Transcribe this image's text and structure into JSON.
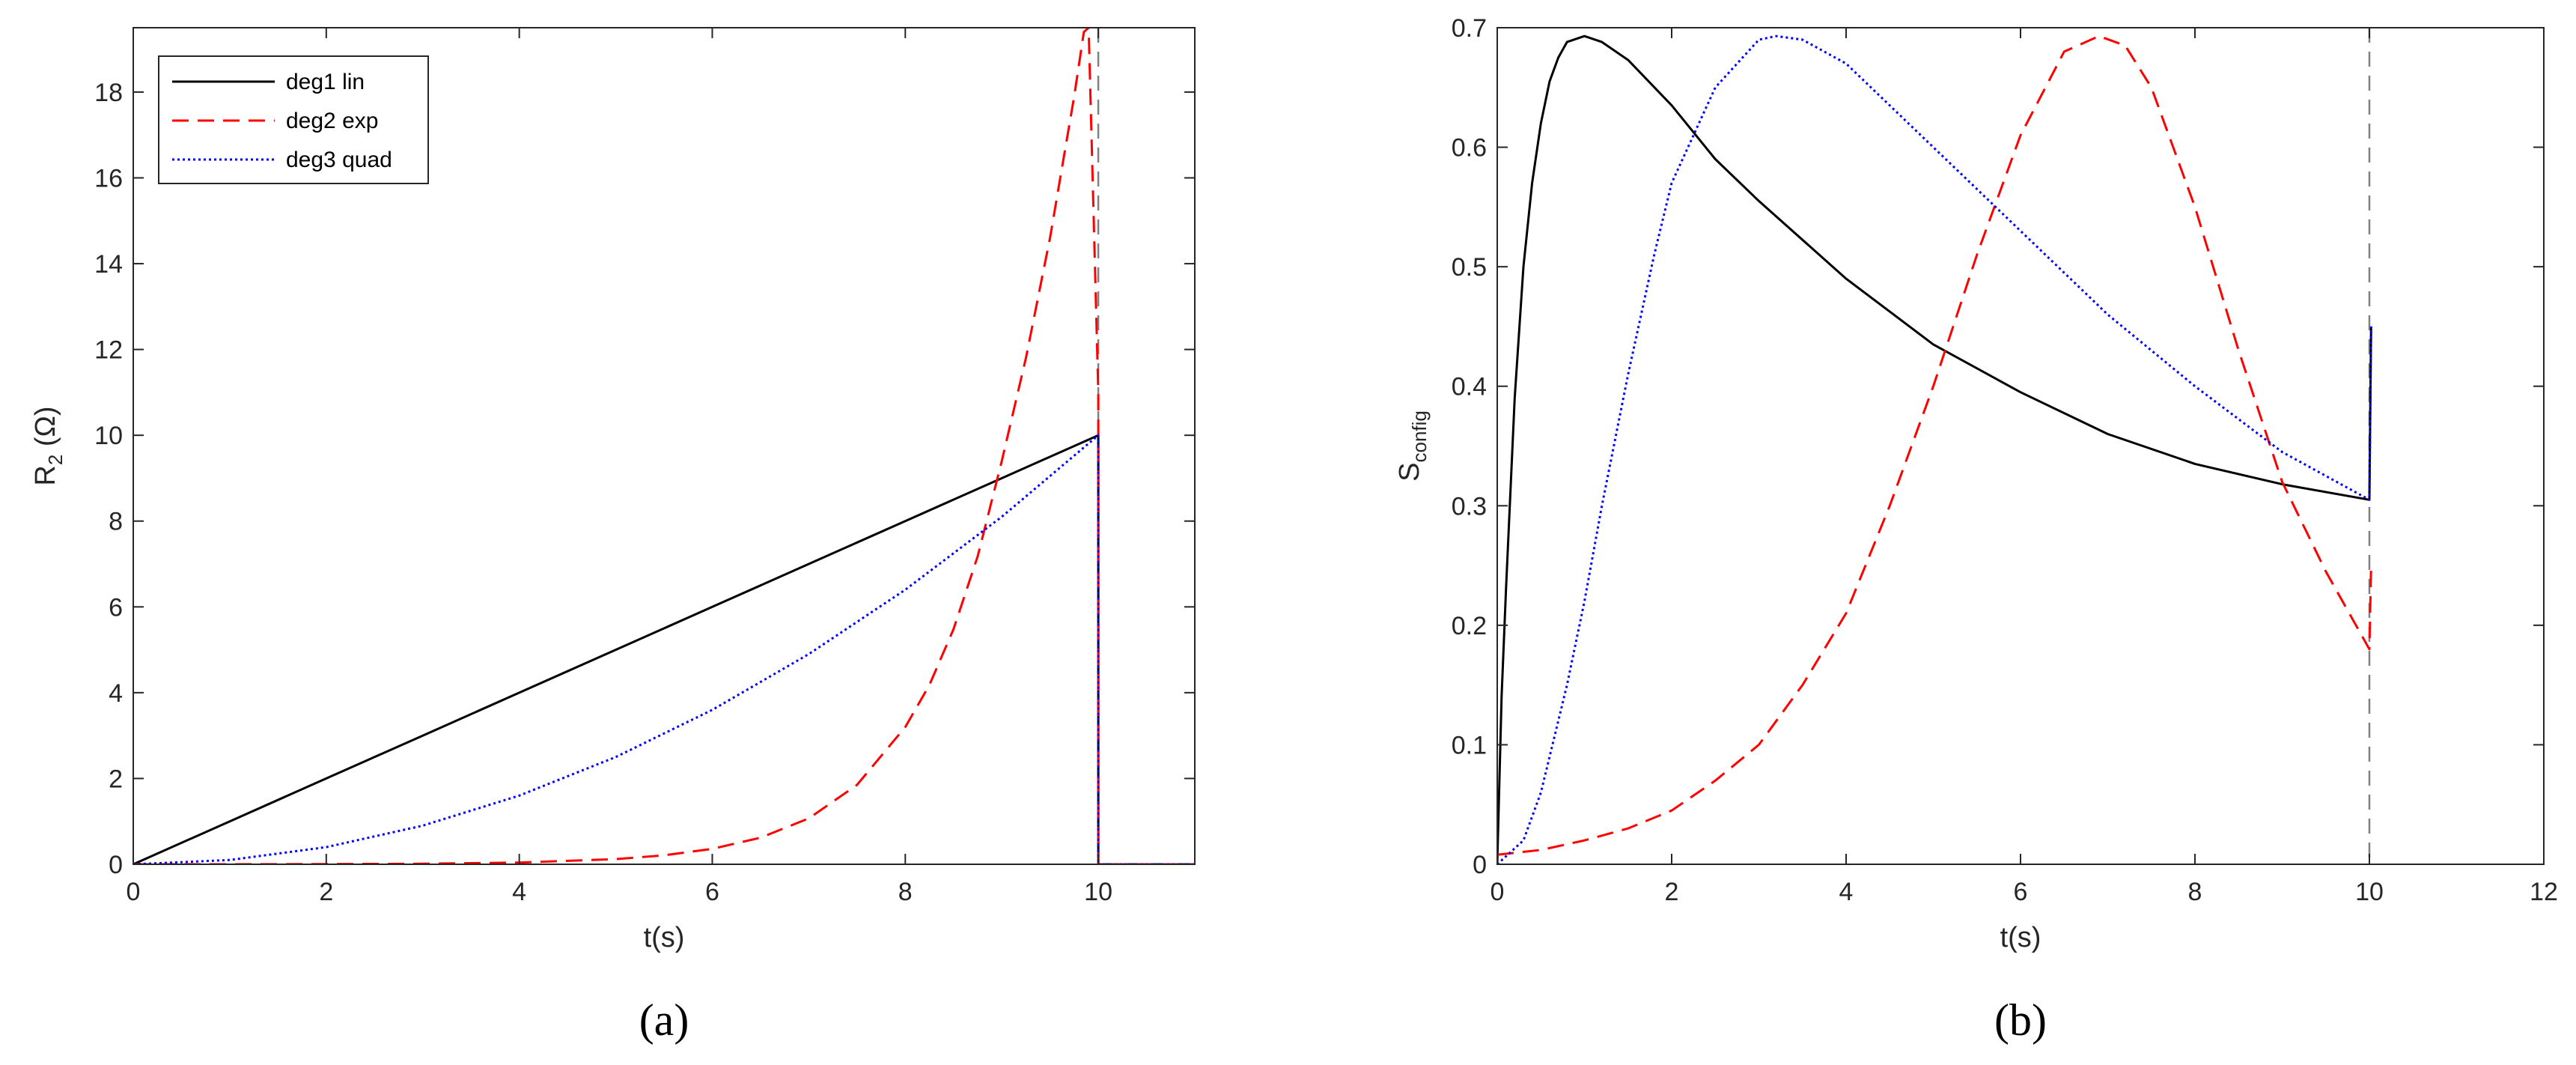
{
  "chart_data": [
    {
      "type": "line",
      "panel_label": "(a)",
      "xlabel": "t(s)",
      "ylabel": {
        "main": "R",
        "subscript": "2",
        "unit": " (Ω)"
      },
      "xlim": [
        0,
        11
      ],
      "ylim": [
        0,
        19.5
      ],
      "xticks": [
        0,
        2,
        4,
        6,
        8,
        10
      ],
      "yticks": [
        0,
        2,
        4,
        6,
        8,
        10,
        12,
        14,
        16,
        18
      ],
      "grid": false,
      "vline": {
        "x": 10,
        "color": "#808080",
        "style": "dashed"
      },
      "legend": {
        "placement": "top-left"
      },
      "series": [
        {
          "name": "deg1 lin",
          "color": "#000000",
          "style": "solid",
          "x": [
            0,
            1,
            2,
            3,
            4,
            5,
            6,
            7,
            8,
            9,
            10,
            10,
            11
          ],
          "y": [
            0,
            1,
            2,
            3,
            4,
            5,
            6,
            7,
            8,
            9,
            10,
            0,
            0
          ]
        },
        {
          "name": "deg2 exp",
          "color": "#ff0000",
          "style": "dashed",
          "x": [
            0,
            1,
            2,
            3,
            4,
            5,
            5.5,
            6,
            6.5,
            7,
            7.5,
            8,
            8.25,
            8.5,
            8.75,
            9,
            9.25,
            9.5,
            9.75,
            9.85,
            9.9,
            10,
            10,
            11
          ],
          "y": [
            0,
            0,
            0.005,
            0.013,
            0.04,
            0.12,
            0.21,
            0.36,
            0.62,
            1.07,
            1.85,
            3.2,
            4.18,
            5.48,
            7.18,
            9.4,
            11.8,
            14.6,
            17.9,
            19.4,
            19.5,
            11,
            0,
            0
          ]
        },
        {
          "name": "deg3 quad",
          "color": "#0000ff",
          "style": "dotted",
          "x": [
            0,
            1,
            2,
            3,
            4,
            5,
            6,
            7,
            8,
            9,
            10,
            10,
            11
          ],
          "y": [
            0,
            0.1,
            0.4,
            0.9,
            1.6,
            2.5,
            3.6,
            4.9,
            6.4,
            8.1,
            10,
            0,
            0
          ]
        }
      ]
    },
    {
      "type": "line",
      "panel_label": "(b)",
      "xlabel": "t(s)",
      "ylabel": {
        "main": "S",
        "subscript": "config",
        "unit": ""
      },
      "xlim": [
        0,
        12
      ],
      "ylim": [
        0,
        0.7
      ],
      "xticks": [
        0,
        2,
        4,
        6,
        8,
        10,
        12
      ],
      "yticks": [
        0,
        0.1,
        0.2,
        0.3,
        0.4,
        0.5,
        0.6,
        0.7
      ],
      "ytick_labels": [
        "0",
        "0.1",
        "0.2",
        "0.3",
        "0.4",
        "0.5",
        "0.6",
        "0.7"
      ],
      "grid": false,
      "vline": {
        "x": 10,
        "color": "#808080",
        "style": "dashed"
      },
      "series": [
        {
          "name": "deg1 lin",
          "color": "#000000",
          "style": "solid",
          "x": [
            0,
            0.05,
            0.1,
            0.2,
            0.3,
            0.4,
            0.5,
            0.6,
            0.7,
            0.8,
            1.0,
            1.2,
            1.5,
            2,
            2.5,
            3,
            4,
            5,
            6,
            7,
            8,
            9,
            10,
            10,
            10.02
          ],
          "y": [
            0,
            0.14,
            0.23,
            0.39,
            0.5,
            0.57,
            0.62,
            0.655,
            0.675,
            0.688,
            0.693,
            0.688,
            0.673,
            0.635,
            0.59,
            0.555,
            0.49,
            0.435,
            0.395,
            0.36,
            0.335,
            0.318,
            0.305,
            0.305,
            0.45
          ]
        },
        {
          "name": "deg2 exp",
          "color": "#ff0000",
          "style": "dashed",
          "x": [
            0,
            0.5,
            1,
            1.5,
            2,
            2.5,
            3,
            3.5,
            4,
            4.5,
            5,
            5.5,
            6,
            6.5,
            6.9,
            7.2,
            7.5,
            8,
            8.5,
            9,
            9.5,
            10,
            10,
            10.02
          ],
          "y": [
            0.008,
            0.012,
            0.02,
            0.03,
            0.045,
            0.07,
            0.1,
            0.15,
            0.21,
            0.3,
            0.4,
            0.51,
            0.61,
            0.68,
            0.693,
            0.685,
            0.65,
            0.55,
            0.43,
            0.32,
            0.245,
            0.18,
            0.18,
            0.25
          ]
        },
        {
          "name": "deg3 quad",
          "color": "#0000ff",
          "style": "dotted",
          "x": [
            0,
            0.3,
            0.5,
            0.8,
            1.0,
            1.2,
            1.5,
            1.8,
            2.0,
            2.5,
            3.0,
            3.2,
            3.5,
            4,
            5,
            6,
            7,
            8,
            9,
            10,
            10,
            10.02
          ],
          "y": [
            0,
            0.02,
            0.06,
            0.15,
            0.22,
            0.3,
            0.41,
            0.51,
            0.57,
            0.65,
            0.69,
            0.693,
            0.69,
            0.67,
            0.6,
            0.53,
            0.46,
            0.4,
            0.345,
            0.305,
            0.305,
            0.45
          ]
        }
      ]
    }
  ]
}
